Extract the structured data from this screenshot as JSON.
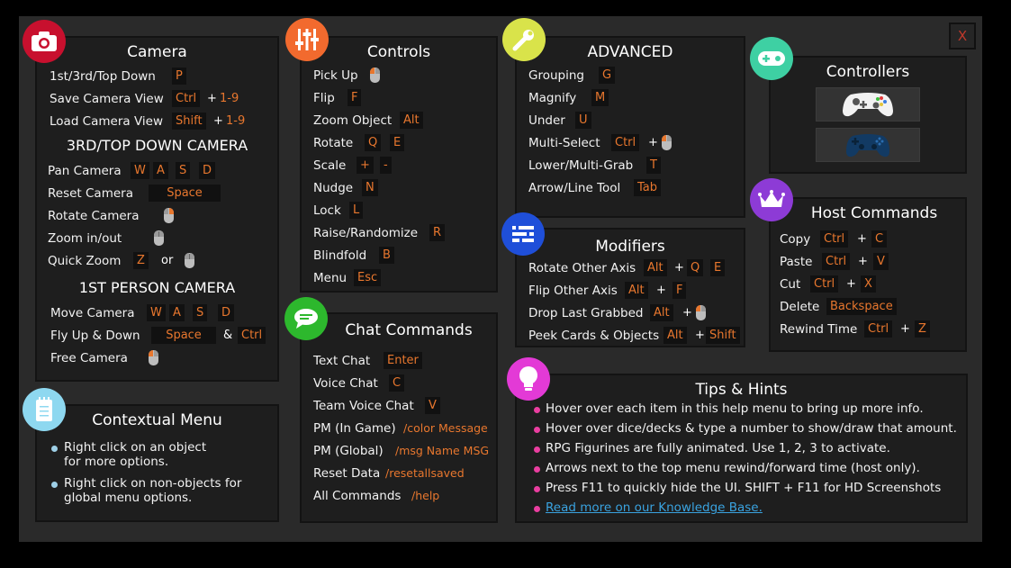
{
  "close_label": "X",
  "colors": {
    "camera_icon": "#c8102e",
    "controls_icon": "#f26a2e",
    "advanced_icon": "#d9e34a",
    "controllers_icon": "#3ed0a3",
    "host_icon": "#8d3bd6",
    "modifiers_icon": "#1f4fd9",
    "chat_icon": "#2db82d",
    "contextual_icon": "#8ed8f0",
    "tips_icon": "#e33ad6",
    "key_text": "#e8772e"
  },
  "camera": {
    "title": "Camera",
    "rows": [
      {
        "label": "1st/3rd/Top Down",
        "key": "P"
      },
      {
        "label": "Save Camera View",
        "key": "Ctrl",
        "plus": "+",
        "key2": "1-9"
      },
      {
        "label": "Load Camera View",
        "key": "Shift",
        "plus": "+",
        "key2": "1-9"
      }
    ],
    "third_title": "3RD/TOP DOWN CAMERA",
    "third_rows": [
      {
        "label": "Pan Camera",
        "keys": [
          "W",
          "A",
          "S",
          "D"
        ]
      },
      {
        "label": "Reset Camera",
        "key": "Space"
      },
      {
        "label": "Rotate Camera"
      },
      {
        "label": "Zoom in/out"
      },
      {
        "label": "Quick Zoom",
        "key": "Z",
        "or": "or"
      }
    ],
    "first_title": "1ST PERSON CAMERA",
    "first_rows": [
      {
        "label": "Move Camera",
        "keys": [
          "W",
          "A",
          "S",
          "D"
        ]
      },
      {
        "label": "Fly Up & Down",
        "key": "Space",
        "amp": "&",
        "key2": "Ctrl"
      },
      {
        "label": "Free Camera"
      }
    ]
  },
  "contextual": {
    "title": "Contextual Menu",
    "items": [
      {
        "line1": "Right click on an object",
        "line2": "for more options."
      },
      {
        "line1": "Right click on non-objects for",
        "line2": "global menu options."
      }
    ]
  },
  "controls": {
    "title": "Controls",
    "rows": [
      {
        "label": "Pick Up"
      },
      {
        "label": "Flip",
        "keys": [
          "F"
        ]
      },
      {
        "label": "Zoom Object",
        "keys": [
          "Alt"
        ]
      },
      {
        "label": "Rotate",
        "keys": [
          "Q",
          "E"
        ]
      },
      {
        "label": "Scale",
        "keys": [
          "+",
          "-"
        ]
      },
      {
        "label": "Nudge",
        "keys": [
          "N"
        ]
      },
      {
        "label": "Lock",
        "keys": [
          "L"
        ]
      },
      {
        "label": "Raise/Randomize",
        "keys": [
          "R"
        ]
      },
      {
        "label": "Blindfold",
        "keys": [
          "B"
        ]
      },
      {
        "label": "Menu",
        "keys": [
          "Esc"
        ]
      }
    ]
  },
  "chat": {
    "title": "Chat Commands",
    "rows": [
      {
        "label": "Text Chat",
        "key": "Enter"
      },
      {
        "label": "Voice Chat",
        "key": "C"
      },
      {
        "label": "Team Voice Chat",
        "key": "V"
      },
      {
        "label": "PM (In Game)",
        "cmd": "/color Message"
      },
      {
        "label": "PM (Global)",
        "cmd": "/msg Name MSG"
      },
      {
        "label": "Reset Data",
        "cmd": "/resetallsaved"
      },
      {
        "label": "All Commands",
        "cmd": "/help"
      }
    ]
  },
  "advanced": {
    "title": "ADVANCED",
    "rows": [
      {
        "label": "Grouping",
        "key": "G"
      },
      {
        "label": "Magnify",
        "key": "M"
      },
      {
        "label": "Under",
        "key": "U"
      },
      {
        "label": "Multi-Select",
        "key": "Ctrl",
        "plus": "+"
      },
      {
        "label": "Lower/Multi-Grab",
        "key": "T"
      },
      {
        "label": "Arrow/Line Tool",
        "key": "Tab"
      }
    ]
  },
  "modifiers": {
    "title": "Modifiers",
    "rows": [
      {
        "label": "Rotate Other Axis",
        "key": "Alt",
        "plus": "+",
        "keys2": [
          "Q",
          "E"
        ]
      },
      {
        "label": "Flip Other Axis",
        "key": "Alt",
        "plus": "+",
        "keys2": [
          "F"
        ]
      },
      {
        "label": "Drop Last Grabbed",
        "key": "Alt",
        "plus": "+"
      },
      {
        "label": "Peek Cards & Objects",
        "key": "Alt",
        "plus": "+",
        "keys2": [
          "Shift"
        ]
      }
    ]
  },
  "controllers": {
    "title": "Controllers"
  },
  "host": {
    "title": "Host Commands",
    "rows": [
      {
        "label": "Copy",
        "key": "Ctrl",
        "plus": "+",
        "key2": "C"
      },
      {
        "label": "Paste",
        "key": "Ctrl",
        "plus": "+",
        "key2": "V"
      },
      {
        "label": "Cut",
        "key": "Ctrl",
        "plus": "+",
        "key2": "X"
      },
      {
        "label": "Delete",
        "key": "Backspace"
      },
      {
        "label": "Rewind Time",
        "key": "Ctrl",
        "plus": "+",
        "key2": "Z"
      }
    ]
  },
  "tips": {
    "title": "Tips & Hints",
    "items": [
      "Hover over each item in this help menu to bring up more info.",
      "Hover over dice/decks & type a number to show/draw that amount.",
      "RPG Figurines are fully animated. Use 1, 2, 3 to activate.",
      "Arrows next to the top menu rewind/forward time (host only).",
      "Press F11 to quickly hide the UI. SHIFT + F11 for HD Screenshots"
    ],
    "link": "Read more on our Knowledge Base."
  }
}
